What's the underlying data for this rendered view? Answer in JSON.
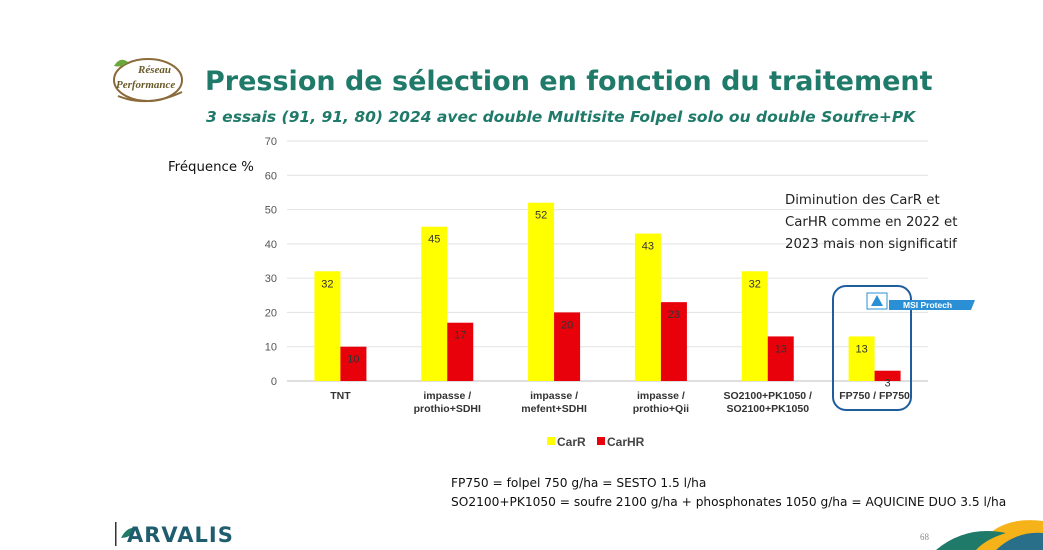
{
  "slide": {
    "logo_text_line1": "Réseau",
    "logo_text_line2": "Performance",
    "title": "Pression de sélection en fonction du traitement",
    "subtitle": "3 essais (91, 91, 80) 2024 avec double Multisite Folpel solo ou double Soufre+PK",
    "note_lines": [
      "Diminution des CarR et",
      "CarHR comme en 2022 et",
      "2023 mais non significatif"
    ],
    "footnotes": [
      "FP750 = folpel 750 g/ha = SESTO 1.5 l/ha",
      "SO2100+PK1050 = soufre 2100 g/ha + phosphonates 1050 g/ha = AQUICINE DUO 3.5 l/ha"
    ],
    "badge_text": "MSI Protech",
    "brand": "ARVALIS",
    "page_number": "68"
  },
  "colors": {
    "title": "#1f7a6a",
    "carr": "#ffff00",
    "carhr": "#e8000b",
    "highlight_box": "#1f5d9c",
    "badge": "#2b8fd6"
  },
  "chart_data": {
    "type": "bar",
    "title": "",
    "ylabel": "Fréquence %",
    "xlabel": "",
    "ylim": [
      0,
      70
    ],
    "yticks": [
      0,
      10,
      20,
      30,
      40,
      50,
      60,
      70
    ],
    "grid": true,
    "legend_position": "bottom",
    "categories": [
      [
        "TNT"
      ],
      [
        "impasse /",
        "prothio+SDHI"
      ],
      [
        "impasse /",
        "mefent+SDHI"
      ],
      [
        "impasse /",
        "prothio+Qii"
      ],
      [
        "SO2100+PK1050 /",
        "SO2100+PK1050"
      ],
      [
        "FP750 / FP750"
      ]
    ],
    "series": [
      {
        "name": "CarR",
        "color": "#ffff00",
        "values": [
          32,
          45,
          52,
          43,
          32,
          13
        ]
      },
      {
        "name": "CarHR",
        "color": "#e8000b",
        "values": [
          10,
          17,
          20,
          23,
          13,
          3
        ]
      }
    ]
  }
}
